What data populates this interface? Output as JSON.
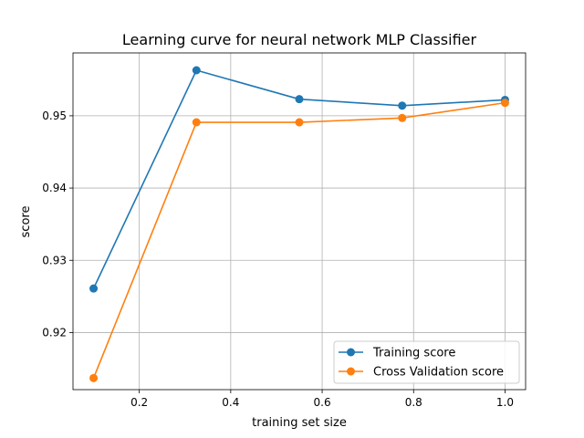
{
  "chart_data": {
    "type": "line",
    "title": "Learning curve for neural network MLP Classifier",
    "xlabel": "training set size",
    "ylabel": "score",
    "xlim": [
      0.055,
      1.045
    ],
    "ylim": [
      0.9121,
      0.9587
    ],
    "xticks": [
      0.2,
      0.4,
      0.6,
      0.8,
      1.0
    ],
    "xtick_labels": [
      "0.2",
      "0.4",
      "0.6",
      "0.8",
      "1.0"
    ],
    "yticks": [
      0.92,
      0.93,
      0.94,
      0.95
    ],
    "ytick_labels": [
      "0.92",
      "0.93",
      "0.94",
      "0.95"
    ],
    "grid": true,
    "legend_position": "lower-right",
    "x": [
      0.1,
      0.325,
      0.55,
      0.775,
      1.0
    ],
    "series": [
      {
        "name": "Training score",
        "color": "#1f77b4",
        "values": [
          0.9261,
          0.9563,
          0.9523,
          0.9514,
          0.9522
        ]
      },
      {
        "name": "Cross Validation score",
        "color": "#ff7f0e",
        "values": [
          0.9137,
          0.9491,
          0.9491,
          0.9497,
          0.9518
        ]
      }
    ]
  }
}
